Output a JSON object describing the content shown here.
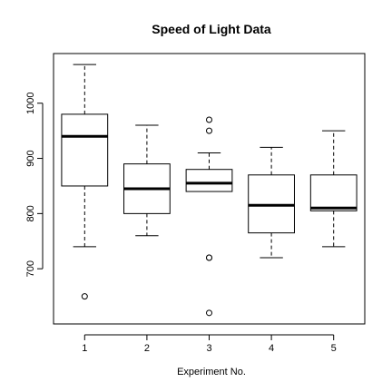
{
  "chart_data": {
    "type": "boxplot",
    "title": "Speed of Light Data",
    "xlabel": "Experiment No.",
    "ylabel": "",
    "ylim": [
      600,
      1090
    ],
    "yticks": [
      700,
      800,
      900,
      1000
    ],
    "categories": [
      "1",
      "2",
      "3",
      "4",
      "5"
    ],
    "boxes": [
      {
        "category": "1",
        "whisker_low": 740,
        "q1": 850,
        "median": 940,
        "q3": 980,
        "whisker_high": 1070,
        "outliers": [
          650
        ]
      },
      {
        "category": "2",
        "whisker_low": 760,
        "q1": 800,
        "median": 845,
        "q3": 890,
        "whisker_high": 960,
        "outliers": []
      },
      {
        "category": "3",
        "whisker_low": 840,
        "q1": 840,
        "median": 855,
        "q3": 880,
        "whisker_high": 910,
        "outliers": [
          970,
          950,
          720,
          720,
          620
        ]
      },
      {
        "category": "4",
        "whisker_low": 720,
        "q1": 765,
        "median": 815,
        "q3": 870,
        "whisker_high": 920,
        "outliers": []
      },
      {
        "category": "5",
        "whisker_low": 740,
        "q1": 805,
        "median": 810,
        "q3": 870,
        "whisker_high": 950,
        "outliers": []
      }
    ]
  }
}
